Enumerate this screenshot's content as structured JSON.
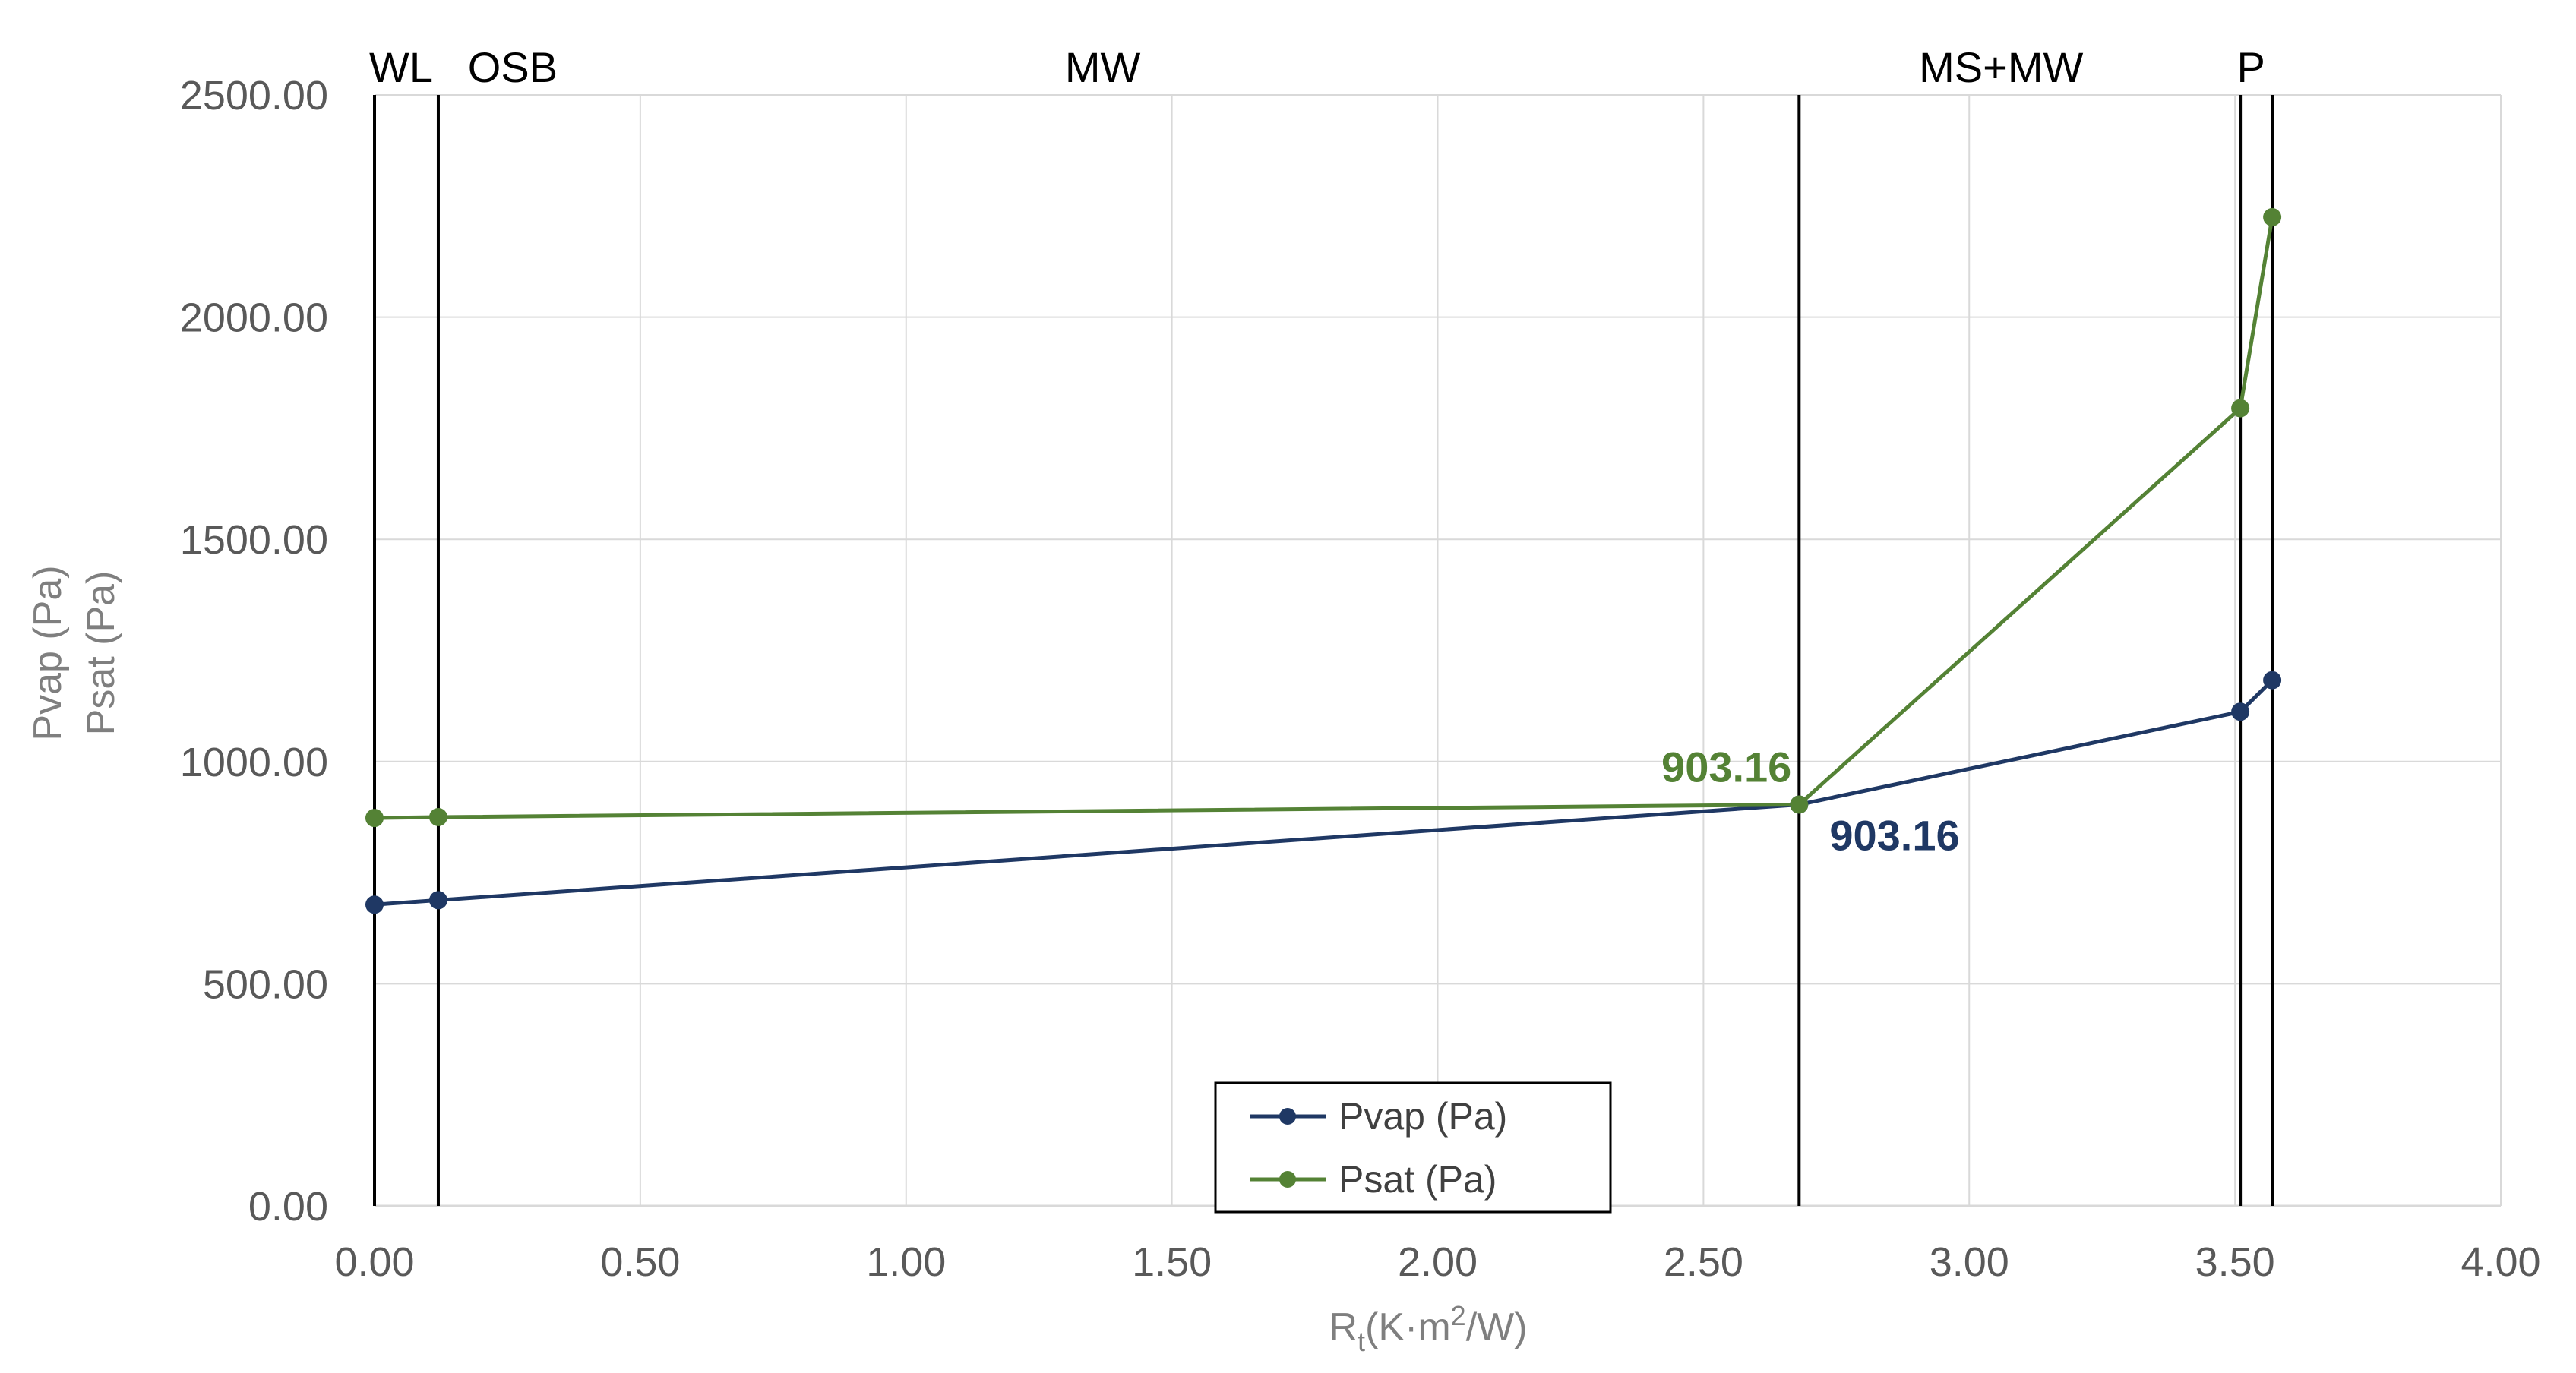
{
  "chart_data": {
    "type": "line",
    "title": "",
    "xlabel": "Rt(K·m²/W)",
    "xlabel_main": "R",
    "xlabel_sub": "t",
    "xlabel_rest": "(K·m",
    "xlabel_sup": "2",
    "xlabel_end": "/W)",
    "ylabel_lines": [
      "Pvap (Pa)",
      "Psat (Pa)"
    ],
    "xlim": [
      0,
      4
    ],
    "ylim": [
      0,
      2500
    ],
    "grid": true,
    "x_ticks": [
      0,
      0.5,
      1,
      1.5,
      2,
      2.5,
      3,
      3.5,
      4
    ],
    "x_tick_labels": [
      "0.00",
      "0.50",
      "1.00",
      "1.50",
      "2.00",
      "2.50",
      "3.00",
      "3.50",
      "4.00"
    ],
    "y_ticks": [
      0,
      500,
      1000,
      1500,
      2000,
      2500
    ],
    "y_tick_labels": [
      "0.00",
      "500.00",
      "1000.00",
      "1500.00",
      "2000.00",
      "2500.00"
    ],
    "layer_boundaries": [
      0.0,
      0.12,
      2.68,
      3.51,
      3.57
    ],
    "layer_labels": [
      {
        "text": "WL",
        "x": 0.05
      },
      {
        "text": "OSB",
        "x": 0.26
      },
      {
        "text": "MW",
        "x": 1.37
      },
      {
        "text": "MS+MW",
        "x": 3.06
      },
      {
        "text": "P",
        "x": 3.53
      }
    ],
    "series": [
      {
        "name": "Pvap (Pa)",
        "color": "#1f3864",
        "points": [
          [
            0.0,
            678
          ],
          [
            0.12,
            688
          ],
          [
            2.68,
            903.16
          ],
          [
            3.51,
            1112
          ],
          [
            3.57,
            1183
          ]
        ]
      },
      {
        "name": "Psat (Pa)",
        "color": "#548235",
        "points": [
          [
            0.0,
            873
          ],
          [
            0.12,
            875
          ],
          [
            2.68,
            903.16
          ],
          [
            3.51,
            1795
          ],
          [
            3.57,
            2225
          ]
        ]
      }
    ],
    "annotations": [
      {
        "text": "903.16",
        "series": "Psat (Pa)",
        "x": 2.68,
        "y": 903.16,
        "position": "above-left",
        "color": "#548235"
      },
      {
        "text": "903.16",
        "series": "Pvap (Pa)",
        "x": 2.68,
        "y": 903.16,
        "position": "below-right",
        "color": "#1f3864"
      }
    ],
    "legend": {
      "position": "bottom-center",
      "entries": [
        "Pvap (Pa)",
        "Psat (Pa)"
      ]
    }
  }
}
